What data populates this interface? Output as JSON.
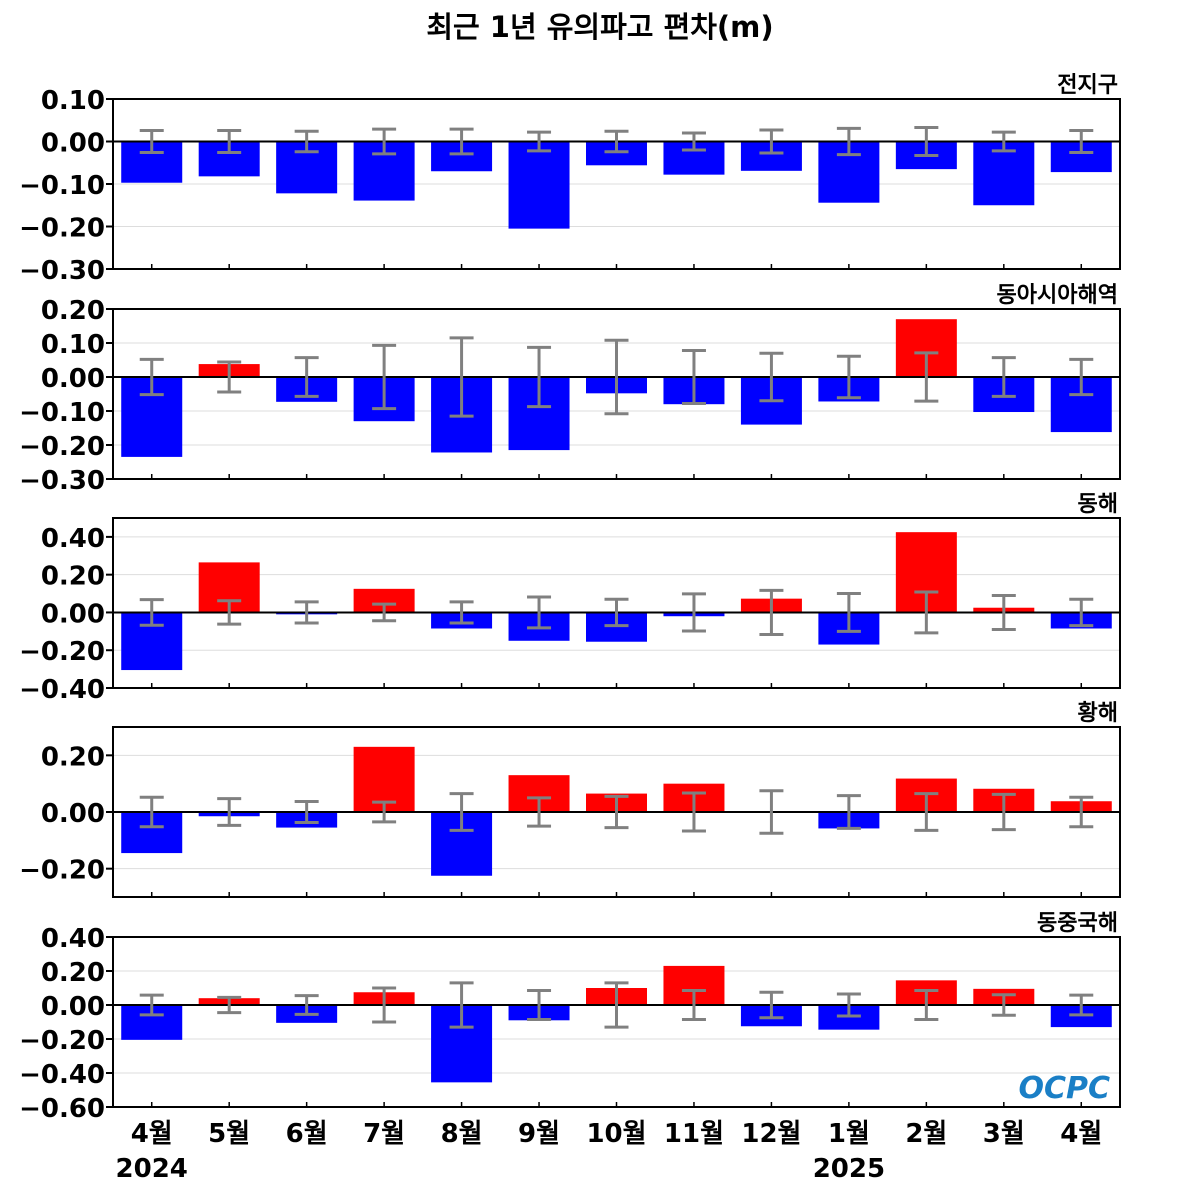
{
  "page_title": "최근 1년 유의파고 편차(m)",
  "logo_text": "OCPC",
  "colors": {
    "positive": "#ff0000",
    "negative": "#0000ff",
    "errorbar": "#808080",
    "zero_line": "#000000",
    "grid": "#dddddd",
    "logo": "#1a7fc6"
  },
  "chart_data": [
    {
      "type": "bar",
      "title": "전지구",
      "categories": [
        "4월",
        "5월",
        "6월",
        "7월",
        "8월",
        "9월",
        "10월",
        "11월",
        "12월",
        "1월",
        "2월",
        "3월",
        "4월"
      ],
      "ylim": [
        -0.3,
        0.1
      ],
      "yticks": [
        "0.10",
        "0.00",
        "−0.10",
        "−0.20",
        "−0.30"
      ],
      "ytick_values": [
        0.1,
        0.0,
        -0.1,
        -0.2,
        -0.3
      ],
      "values": [
        -0.097,
        -0.082,
        -0.122,
        -0.139,
        -0.07,
        -0.205,
        -0.056,
        -0.078,
        -0.069,
        -0.144,
        -0.065,
        -0.15,
        -0.072
      ],
      "error": [
        0.026,
        0.026,
        0.024,
        0.029,
        0.029,
        0.022,
        0.024,
        0.02,
        0.027,
        0.031,
        0.033,
        0.022,
        0.026
      ],
      "grid": true
    },
    {
      "type": "bar",
      "title": "동아시아해역",
      "categories": [
        "4월",
        "5월",
        "6월",
        "7월",
        "8월",
        "9월",
        "10월",
        "11월",
        "12월",
        "1월",
        "2월",
        "3월",
        "4월"
      ],
      "ylim": [
        -0.3,
        0.2
      ],
      "yticks": [
        "0.20",
        "0.10",
        "0.00",
        "−0.10",
        "−0.20",
        "−0.30"
      ],
      "ytick_values": [
        0.2,
        0.1,
        0.0,
        -0.1,
        -0.2,
        -0.3
      ],
      "values": [
        -0.235,
        0.038,
        -0.073,
        -0.13,
        -0.222,
        -0.215,
        -0.048,
        -0.08,
        -0.14,
        -0.072,
        0.17,
        -0.103,
        -0.162
      ],
      "error": [
        0.052,
        0.044,
        0.057,
        0.093,
        0.115,
        0.087,
        0.108,
        0.078,
        0.07,
        0.061,
        0.071,
        0.057,
        0.052
      ],
      "grid": true
    },
    {
      "type": "bar",
      "title": "동해",
      "categories": [
        "4월",
        "5월",
        "6월",
        "7월",
        "8월",
        "9월",
        "10월",
        "11월",
        "12월",
        "1월",
        "2월",
        "3월",
        "4월"
      ],
      "ylim": [
        -0.4,
        0.5
      ],
      "yticks": [
        "0.40",
        "0.20",
        "0.00",
        "−0.20",
        "−0.40"
      ],
      "ytick_values": [
        0.4,
        0.2,
        0.0,
        -0.2,
        -0.4
      ],
      "values": [
        -0.305,
        0.265,
        -0.01,
        0.125,
        -0.085,
        -0.15,
        -0.155,
        -0.02,
        0.073,
        -0.17,
        0.425,
        0.025,
        -0.085
      ],
      "error": [
        0.068,
        0.062,
        0.056,
        0.044,
        0.056,
        0.082,
        0.07,
        0.098,
        0.117,
        0.1,
        0.108,
        0.09,
        0.07
      ],
      "grid": true
    },
    {
      "type": "bar",
      "title": "황해",
      "categories": [
        "4월",
        "5월",
        "6월",
        "7월",
        "8월",
        "9월",
        "10월",
        "11월",
        "12월",
        "1월",
        "2월",
        "3월",
        "4월"
      ],
      "ylim": [
        -0.3,
        0.3
      ],
      "yticks": [
        "0.20",
        "0.00",
        "−0.20"
      ],
      "ytick_values": [
        0.2,
        0.0,
        -0.2
      ],
      "values": [
        -0.145,
        -0.015,
        -0.055,
        0.23,
        -0.225,
        0.13,
        0.065,
        0.1,
        0.003,
        -0.058,
        0.118,
        0.082,
        0.038
      ],
      "error": [
        0.052,
        0.047,
        0.037,
        0.035,
        0.065,
        0.05,
        0.055,
        0.067,
        0.075,
        0.058,
        0.065,
        0.062,
        0.052
      ],
      "grid": true
    },
    {
      "type": "bar",
      "title": "동중국해",
      "categories": [
        "4월",
        "5월",
        "6월",
        "7월",
        "8월",
        "9월",
        "10월",
        "11월",
        "12월",
        "1월",
        "2월",
        "3월",
        "4월"
      ],
      "ylim": [
        -0.6,
        0.4
      ],
      "yticks": [
        "0.40",
        "0.20",
        "0.00",
        "−0.20",
        "−0.40",
        "−0.60"
      ],
      "ytick_values": [
        0.4,
        0.2,
        0.0,
        -0.2,
        -0.4,
        -0.6
      ],
      "values": [
        -0.205,
        0.04,
        -0.105,
        0.075,
        -0.455,
        -0.09,
        0.1,
        0.23,
        -0.125,
        -0.145,
        0.145,
        0.095,
        -0.13
      ],
      "error": [
        0.058,
        0.045,
        0.055,
        0.1,
        0.13,
        0.085,
        0.13,
        0.085,
        0.075,
        0.065,
        0.085,
        0.06,
        0.058
      ],
      "grid": true
    }
  ],
  "x_axis": {
    "labels": [
      "4월",
      "5월",
      "6월",
      "7월",
      "8월",
      "9월",
      "10월",
      "11월",
      "12월",
      "1월",
      "2월",
      "3월",
      "4월"
    ],
    "years": [
      {
        "label": "2024",
        "index": 0
      },
      {
        "label": "2025",
        "index": 9
      }
    ]
  }
}
